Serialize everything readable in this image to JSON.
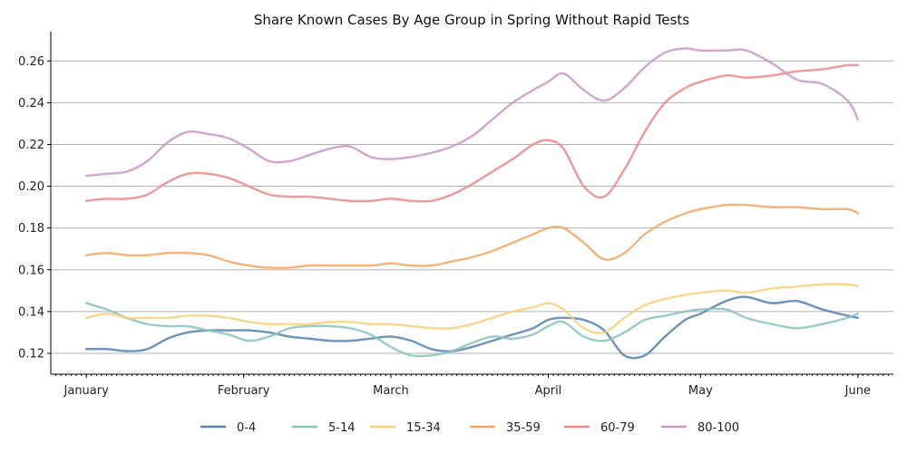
{
  "chart_data": {
    "type": "line",
    "title": "Share Known Cases By Age Group in Spring Without Rapid Tests",
    "xlabel": "",
    "ylabel": "",
    "x_ticks": [
      "January",
      "February",
      "March",
      "April",
      "May",
      "June"
    ],
    "x_tick_days": [
      0,
      31,
      60,
      91,
      121,
      152
    ],
    "xlim": [
      -7,
      159
    ],
    "y_ticks": [
      "0.12",
      "0.14",
      "0.16",
      "0.18",
      "0.20",
      "0.22",
      "0.24",
      "0.26"
    ],
    "ylim": [
      0.11,
      0.274
    ],
    "grid": "horizontal",
    "legend_position": "bottom",
    "series": [
      {
        "name": "0-4",
        "color": "#5b82b0",
        "x": [
          0,
          4,
          8,
          12,
          16,
          20,
          24,
          28,
          32,
          36,
          40,
          44,
          48,
          52,
          56,
          60,
          64,
          68,
          72,
          76,
          80,
          84,
          88,
          91,
          94,
          98,
          102,
          106,
          110,
          114,
          118,
          121,
          126,
          130,
          135,
          140,
          145,
          150,
          152
        ],
        "y": [
          0.122,
          0.122,
          0.121,
          0.122,
          0.127,
          0.13,
          0.131,
          0.131,
          0.131,
          0.13,
          0.128,
          0.127,
          0.126,
          0.126,
          0.127,
          0.128,
          0.126,
          0.122,
          0.121,
          0.123,
          0.126,
          0.129,
          0.132,
          0.136,
          0.137,
          0.136,
          0.131,
          0.119,
          0.119,
          0.128,
          0.136,
          0.139,
          0.145,
          0.147,
          0.144,
          0.145,
          0.141,
          0.138,
          0.137
        ]
      },
      {
        "name": "5-14",
        "color": "#8cc2c0",
        "x": [
          0,
          4,
          8,
          12,
          16,
          20,
          24,
          28,
          32,
          36,
          40,
          44,
          48,
          52,
          56,
          60,
          64,
          68,
          72,
          76,
          80,
          84,
          88,
          91,
          94,
          98,
          102,
          106,
          110,
          114,
          118,
          121,
          126,
          130,
          135,
          140,
          145,
          150,
          152
        ],
        "y": [
          0.144,
          0.141,
          0.137,
          0.134,
          0.133,
          0.133,
          0.131,
          0.129,
          0.126,
          0.128,
          0.132,
          0.133,
          0.133,
          0.132,
          0.129,
          0.123,
          0.119,
          0.119,
          0.121,
          0.125,
          0.128,
          0.127,
          0.129,
          0.133,
          0.135,
          0.128,
          0.126,
          0.13,
          0.136,
          0.138,
          0.14,
          0.141,
          0.141,
          0.137,
          0.134,
          0.132,
          0.134,
          0.137,
          0.139
        ]
      },
      {
        "name": "15-34",
        "color": "#f3d27d",
        "x": [
          0,
          4,
          8,
          12,
          16,
          20,
          24,
          28,
          32,
          36,
          40,
          44,
          48,
          52,
          56,
          60,
          64,
          68,
          72,
          76,
          80,
          84,
          88,
          91,
          94,
          98,
          102,
          106,
          110,
          114,
          118,
          121,
          126,
          130,
          135,
          140,
          145,
          150,
          152
        ],
        "y": [
          0.137,
          0.139,
          0.137,
          0.137,
          0.137,
          0.138,
          0.138,
          0.137,
          0.135,
          0.134,
          0.134,
          0.134,
          0.135,
          0.135,
          0.134,
          0.134,
          0.133,
          0.132,
          0.132,
          0.134,
          0.137,
          0.14,
          0.142,
          0.144,
          0.141,
          0.132,
          0.13,
          0.137,
          0.143,
          0.146,
          0.148,
          0.149,
          0.15,
          0.149,
          0.151,
          0.152,
          0.153,
          0.153,
          0.152
        ]
      },
      {
        "name": "35-59",
        "color": "#f0a868",
        "x": [
          0,
          4,
          8,
          12,
          16,
          20,
          24,
          28,
          32,
          36,
          40,
          44,
          48,
          52,
          56,
          60,
          64,
          68,
          72,
          76,
          80,
          84,
          88,
          91,
          94,
          98,
          102,
          106,
          110,
          114,
          118,
          121,
          126,
          130,
          135,
          140,
          145,
          150,
          152
        ],
        "y": [
          0.167,
          0.168,
          0.167,
          0.167,
          0.168,
          0.168,
          0.167,
          0.164,
          0.162,
          0.161,
          0.161,
          0.162,
          0.162,
          0.162,
          0.162,
          0.163,
          0.162,
          0.162,
          0.164,
          0.166,
          0.169,
          0.173,
          0.177,
          0.18,
          0.18,
          0.173,
          0.165,
          0.168,
          0.177,
          0.183,
          0.187,
          0.189,
          0.191,
          0.191,
          0.19,
          0.19,
          0.189,
          0.189,
          0.187
        ]
      },
      {
        "name": "60-79",
        "color": "#e98b8b",
        "x": [
          0,
          4,
          8,
          12,
          16,
          20,
          24,
          28,
          32,
          36,
          40,
          44,
          48,
          52,
          56,
          60,
          64,
          68,
          72,
          76,
          80,
          84,
          88,
          91,
          94,
          98,
          102,
          106,
          110,
          114,
          118,
          121,
          126,
          130,
          135,
          140,
          145,
          150,
          152
        ],
        "y": [
          0.193,
          0.194,
          0.194,
          0.196,
          0.202,
          0.206,
          0.206,
          0.204,
          0.2,
          0.196,
          0.195,
          0.195,
          0.194,
          0.193,
          0.193,
          0.194,
          0.193,
          0.193,
          0.196,
          0.201,
          0.207,
          0.213,
          0.22,
          0.222,
          0.218,
          0.2,
          0.195,
          0.208,
          0.226,
          0.24,
          0.247,
          0.25,
          0.253,
          0.252,
          0.253,
          0.255,
          0.256,
          0.258,
          0.258
        ]
      },
      {
        "name": "80-100",
        "color": "#c99ac7",
        "x": [
          0,
          4,
          8,
          12,
          16,
          20,
          24,
          28,
          32,
          36,
          40,
          44,
          48,
          52,
          56,
          60,
          64,
          68,
          72,
          76,
          80,
          84,
          88,
          91,
          94,
          98,
          102,
          106,
          110,
          114,
          118,
          121,
          126,
          130,
          135,
          140,
          145,
          150,
          152
        ],
        "y": [
          0.205,
          0.206,
          0.207,
          0.212,
          0.221,
          0.226,
          0.225,
          0.223,
          0.218,
          0.212,
          0.212,
          0.215,
          0.218,
          0.219,
          0.214,
          0.213,
          0.214,
          0.216,
          0.219,
          0.224,
          0.232,
          0.24,
          0.246,
          0.25,
          0.254,
          0.246,
          0.241,
          0.247,
          0.257,
          0.264,
          0.266,
          0.265,
          0.265,
          0.265,
          0.259,
          0.251,
          0.249,
          0.241,
          0.232
        ]
      }
    ]
  }
}
